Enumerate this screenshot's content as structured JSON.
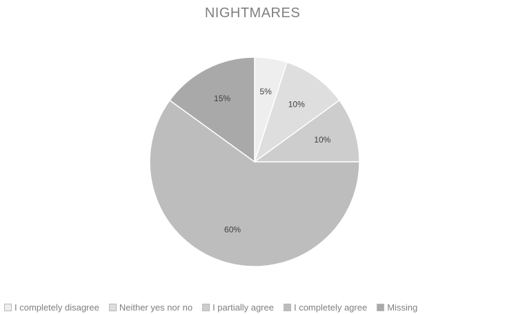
{
  "chart_data": {
    "type": "pie",
    "title": "NIGHTMARES",
    "categories": [
      "I completely disagree",
      "Neither yes nor no",
      "I partially agree",
      "I completely agree",
      "Missing"
    ],
    "values": [
      5,
      10,
      10,
      60,
      15
    ],
    "data_labels": [
      "5%",
      "10%",
      "10%",
      "60%",
      "15%"
    ],
    "colors": [
      "#eeeeee",
      "#dedede",
      "#cdcdcd",
      "#bdbdbd",
      "#a9a9a9"
    ],
    "legend_position": "bottom",
    "start": "top, clockwise"
  }
}
